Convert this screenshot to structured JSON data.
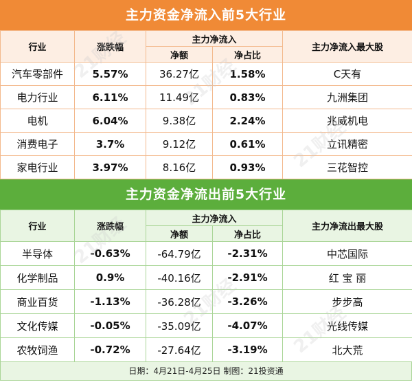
{
  "inflow": {
    "title": "主力资金净流入前5大行业",
    "headers": {
      "industry": "行业",
      "change": "涨跌幅",
      "net_inflow_group": "主力净流入",
      "net_amount": "净额",
      "net_ratio": "净占比",
      "top_stock": "主力净流入最大股"
    },
    "rows": [
      {
        "industry": "汽车零部件",
        "change": "5.57%",
        "amount": "36.27亿",
        "ratio": "1.58%",
        "stock": "C天有"
      },
      {
        "industry": "电力行业",
        "change": "6.11%",
        "amount": "11.49亿",
        "ratio": "0.83%",
        "stock": "九洲集团"
      },
      {
        "industry": "电机",
        "change": "6.04%",
        "amount": "9.38亿",
        "ratio": "2.24%",
        "stock": "兆威机电"
      },
      {
        "industry": "消费电子",
        "change": "3.7%",
        "amount": "9.12亿",
        "ratio": "0.61%",
        "stock": "立讯精密"
      },
      {
        "industry": "家电行业",
        "change": "3.97%",
        "amount": "8.16亿",
        "ratio": "0.93%",
        "stock": "三花智控"
      }
    ]
  },
  "outflow": {
    "title": "主力资金净流出前5大行业",
    "headers": {
      "industry": "行业",
      "change": "涨跌幅",
      "net_inflow_group": "主力净流入",
      "net_amount": "净额",
      "net_ratio": "净占比",
      "top_stock": "主力净流出最大股"
    },
    "rows": [
      {
        "industry": "半导体",
        "change": "-0.63%",
        "amount": "-64.79亿",
        "ratio": "-2.31%",
        "stock": "中芯国际"
      },
      {
        "industry": "化学制品",
        "change": "0.9%",
        "amount": "-40.16亿",
        "ratio": "-2.91%",
        "stock": "红 宝 丽"
      },
      {
        "industry": "商业百货",
        "change": "-1.13%",
        "amount": "-36.28亿",
        "ratio": "-3.26%",
        "stock": "步步高"
      },
      {
        "industry": "文化传媒",
        "change": "-0.05%",
        "amount": "-35.09亿",
        "ratio": "-4.07%",
        "stock": "光线传媒"
      },
      {
        "industry": "农牧饲渔",
        "change": "-0.72%",
        "amount": "-27.64亿",
        "ratio": "-3.19%",
        "stock": "北大荒"
      }
    ]
  },
  "footer": "日期：4月21日-4月25日 制图：21投资通",
  "watermark": "21财经",
  "colors": {
    "inflow_accent": "#f08a36",
    "outflow_accent": "#5cae3c"
  }
}
